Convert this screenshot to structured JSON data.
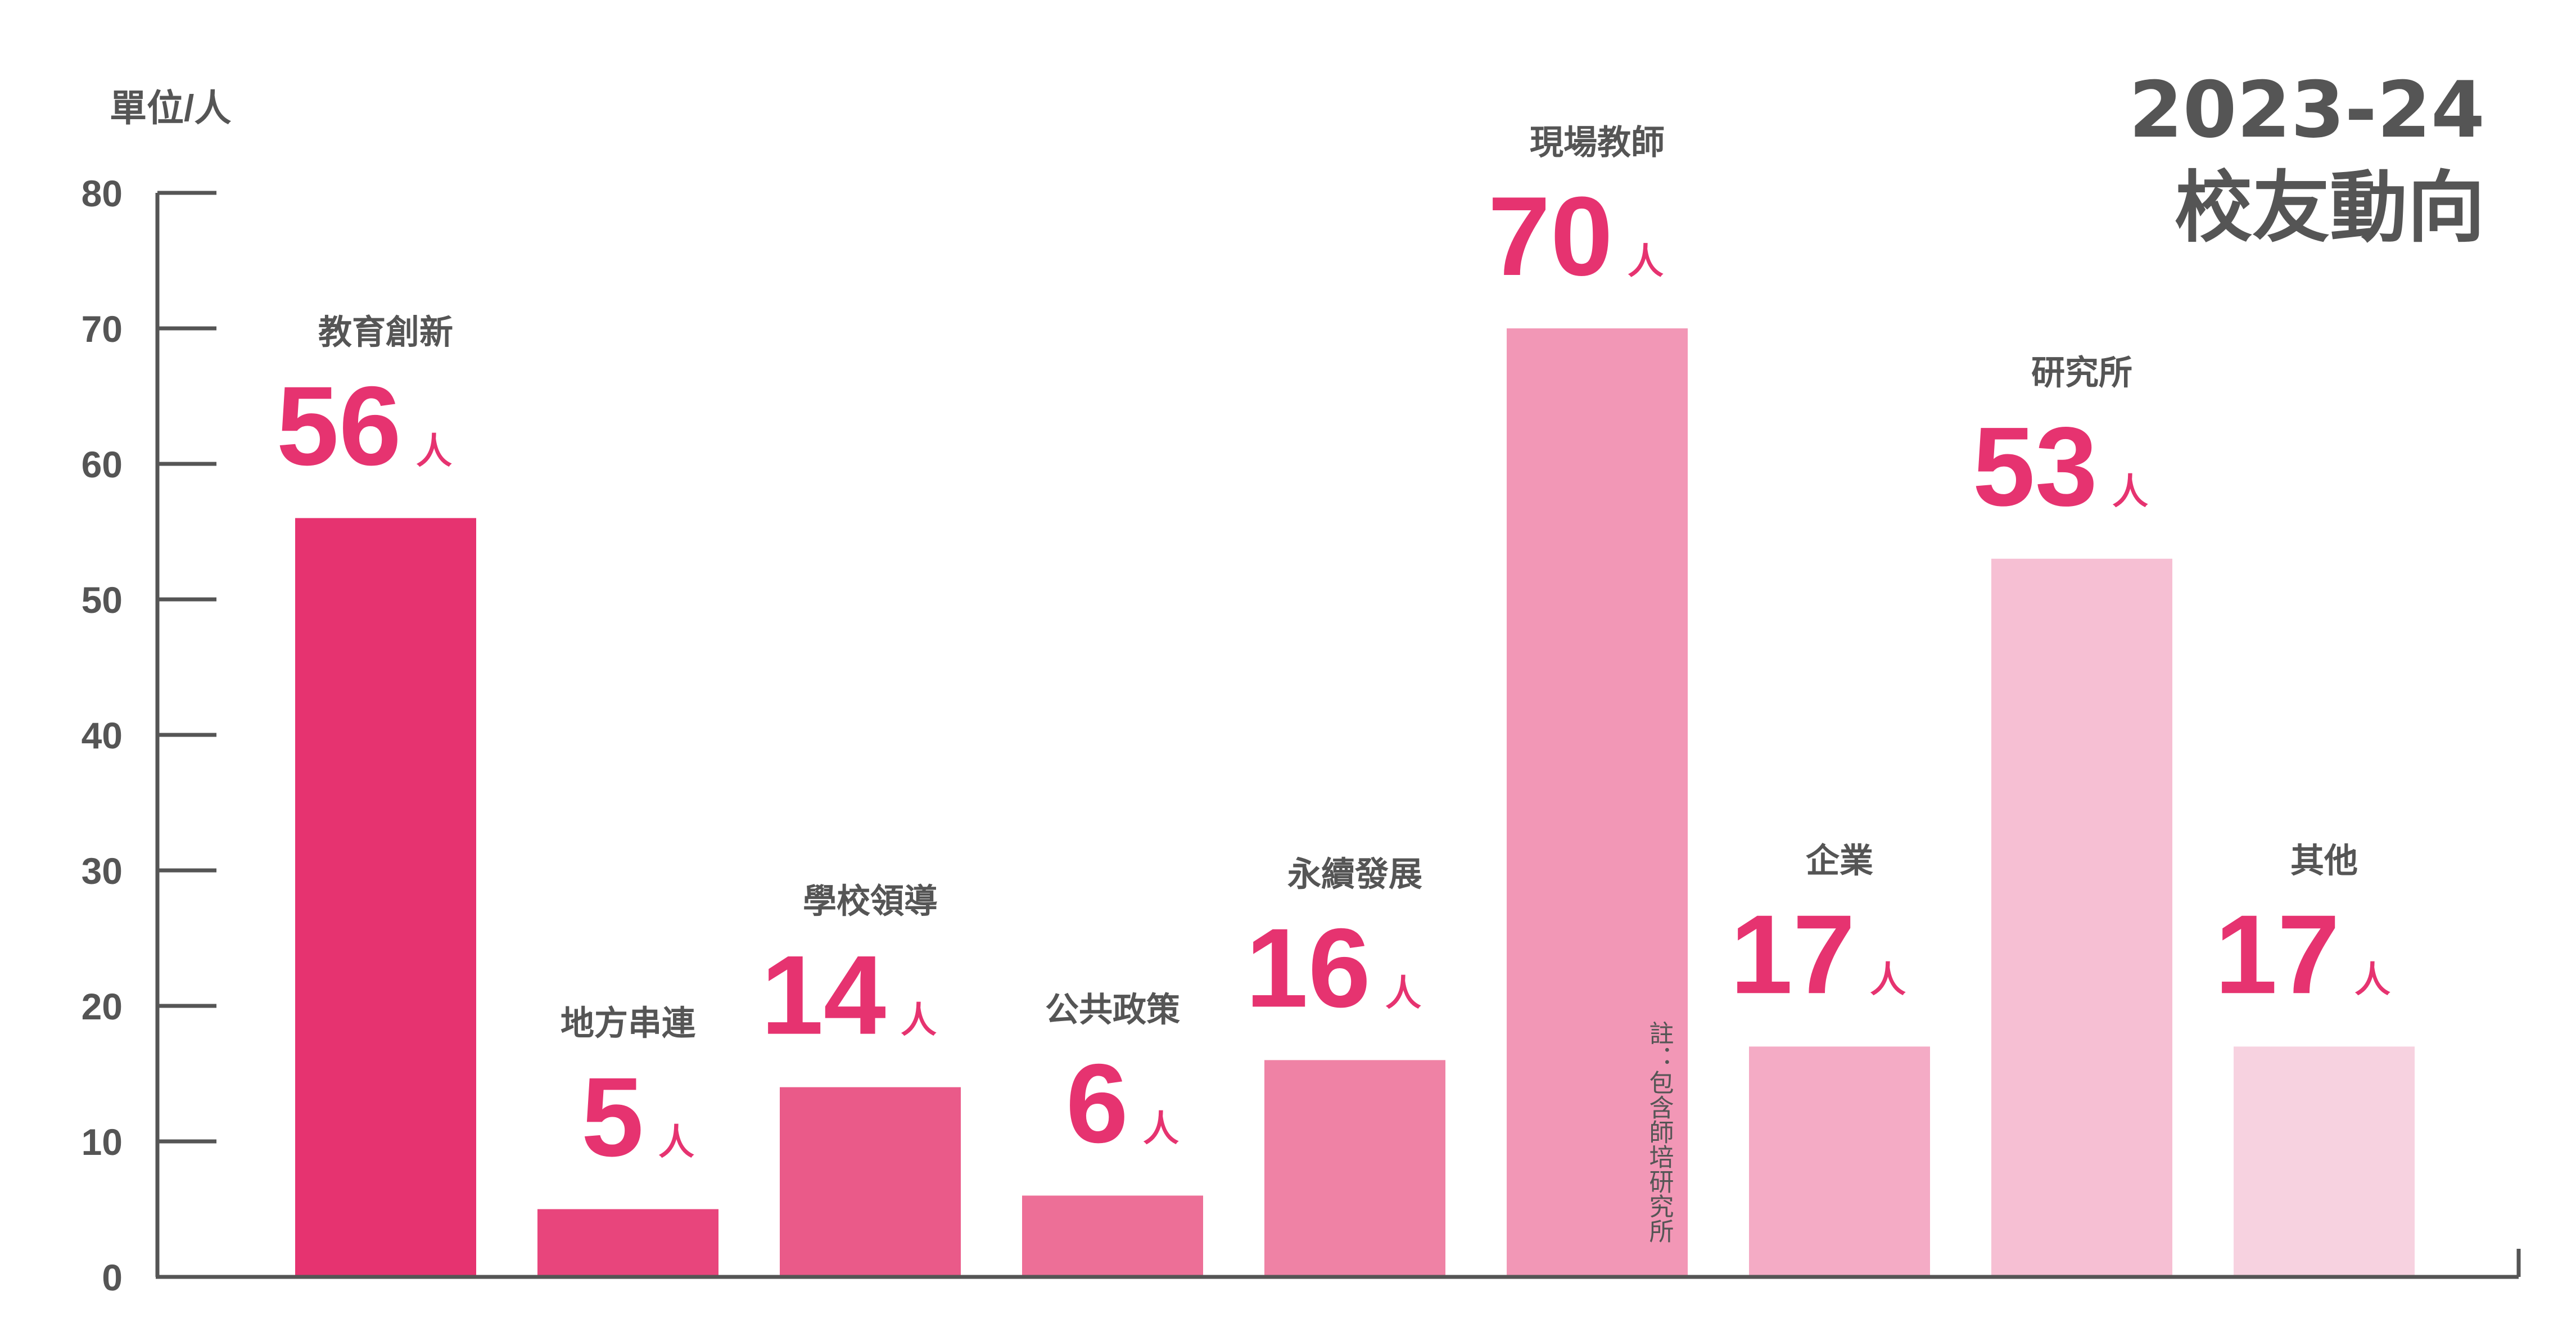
{
  "title": {
    "line1": "2023-24",
    "line2": "校友動向"
  },
  "unit_label": "單位/人",
  "note": "註：包含師培研究所",
  "chart_data": {
    "type": "bar",
    "title": "2023-24 校友動向",
    "ylabel": "單位/人",
    "ylim": [
      0,
      80
    ],
    "yticks": [
      "0",
      "10",
      "20",
      "30",
      "40",
      "50",
      "60",
      "70",
      "80"
    ],
    "categories": [
      "教育創新",
      "地方串連",
      "學校領導",
      "公共政策",
      "永續發展",
      "現場教師",
      "企業",
      "研究所",
      "其他"
    ],
    "values": [
      56,
      5,
      14,
      6,
      16,
      70,
      17,
      53,
      17
    ],
    "value_labels": [
      "56",
      "5",
      "14",
      "6",
      "16",
      "70",
      "17",
      "53",
      "17"
    ],
    "value_unit": "人",
    "bar_colors": [
      "#E63370",
      "#E8457C",
      "#EA5A89",
      "#ED6F97",
      "#EF82A5",
      "#F297B6",
      "#F4ABC5",
      "#F6BFD3",
      "#F7D2E0"
    ],
    "label_color": "#E63370",
    "text_color": "#555555",
    "grid": false,
    "legend": "none"
  }
}
